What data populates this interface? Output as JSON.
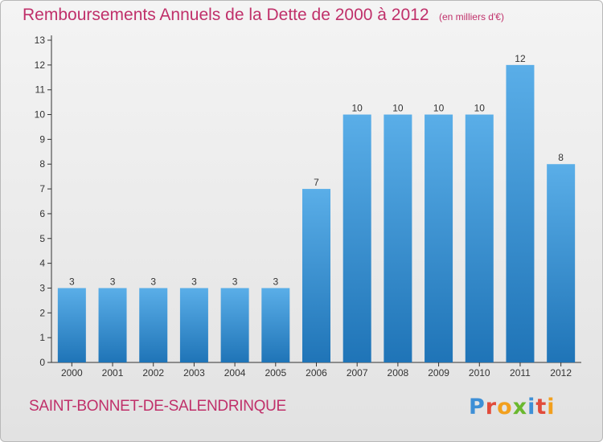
{
  "page": {
    "title": "Remboursements Annuels de la Dette de 2000 à 2012",
    "subtitle": "(en milliers d'€)",
    "commune": "SAINT-BONNET-DE-SALENDRINQUE",
    "brand": "Proxiti",
    "colors": {
      "title": "#c0306a",
      "bar_top": "#5aaee8",
      "bar_bottom": "#1f74b7",
      "brand_p": "#3d8fd6",
      "brand_r": "#e14b3b",
      "brand_o": "#f2a01e",
      "brand_x": "#6ab82e"
    }
  },
  "chart_data": {
    "type": "bar",
    "categories": [
      "2000",
      "2001",
      "2002",
      "2003",
      "2004",
      "2005",
      "2006",
      "2007",
      "2008",
      "2009",
      "2010",
      "2011",
      "2012"
    ],
    "values": [
      3,
      3,
      3,
      3,
      3,
      3,
      7,
      10,
      10,
      10,
      10,
      12,
      8
    ],
    "ylim": [
      0,
      13
    ],
    "yticks": [
      0,
      1,
      2,
      3,
      4,
      5,
      6,
      7,
      8,
      9,
      10,
      11,
      12,
      13
    ],
    "grid": false,
    "data_labels": true
  }
}
